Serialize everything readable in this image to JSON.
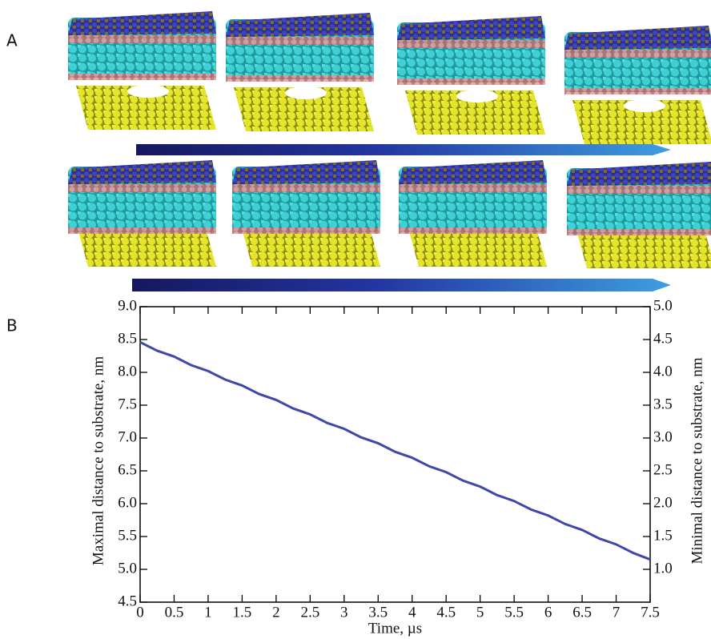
{
  "panel_labels": [
    "A",
    "B"
  ],
  "chart_data": {
    "type": "line",
    "xlabel": "Time,  µs",
    "ylabel": "Maximal distance to substrate, nm",
    "y2label": "Minimal distance to substrate, nm",
    "x": [
      0,
      0.25,
      0.5,
      0.75,
      1,
      1.25,
      1.5,
      1.75,
      2,
      2.25,
      2.5,
      2.75,
      3,
      3.25,
      3.5,
      3.75,
      4,
      4.25,
      4.5,
      4.75,
      5,
      5.25,
      5.5,
      5.75,
      6,
      6.25,
      6.5,
      6.75,
      7,
      7.25,
      7.5
    ],
    "series": [
      {
        "color": "#3f48a8",
        "values": [
          8.46,
          8.33,
          8.24,
          8.11,
          8.02,
          7.89,
          7.8,
          7.67,
          7.58,
          7.45,
          7.36,
          7.23,
          7.14,
          7.01,
          6.92,
          6.79,
          6.7,
          6.57,
          6.48,
          6.35,
          6.26,
          6.13,
          6.04,
          5.91,
          5.82,
          5.69,
          5.6,
          5.47,
          5.38,
          5.25,
          5.15
        ]
      }
    ],
    "xlim": [
      0,
      7.5
    ],
    "xticks": [
      0,
      0.5,
      1,
      1.5,
      2,
      2.5,
      3,
      3.5,
      4,
      4.5,
      5,
      5.5,
      6,
      6.5,
      7,
      7.5
    ],
    "ylim": [
      4.5,
      9.0
    ],
    "yticks": [
      4.5,
      {
        "value": 5,
        "label": "5.0"
      },
      5.5,
      {
        "value": 6,
        "label": "6.0"
      },
      6.5,
      {
        "value": 7,
        "label": "7.0"
      },
      7.5,
      {
        "value": 8,
        "label": "8.0"
      },
      8.5,
      {
        "value": 9,
        "label": "9.0"
      }
    ],
    "y2lim": [
      0.5,
      5.0
    ],
    "y2ticks": [
      {
        "value": 1,
        "label": "1.0"
      },
      1.5,
      {
        "value": 2,
        "label": "2.0"
      },
      2.5,
      {
        "value": 3,
        "label": "3.0"
      },
      3.5,
      {
        "value": 4,
        "label": "4.0"
      },
      4.5,
      {
        "value": 5,
        "label": "5.0"
      }
    ],
    "grid": false
  }
}
